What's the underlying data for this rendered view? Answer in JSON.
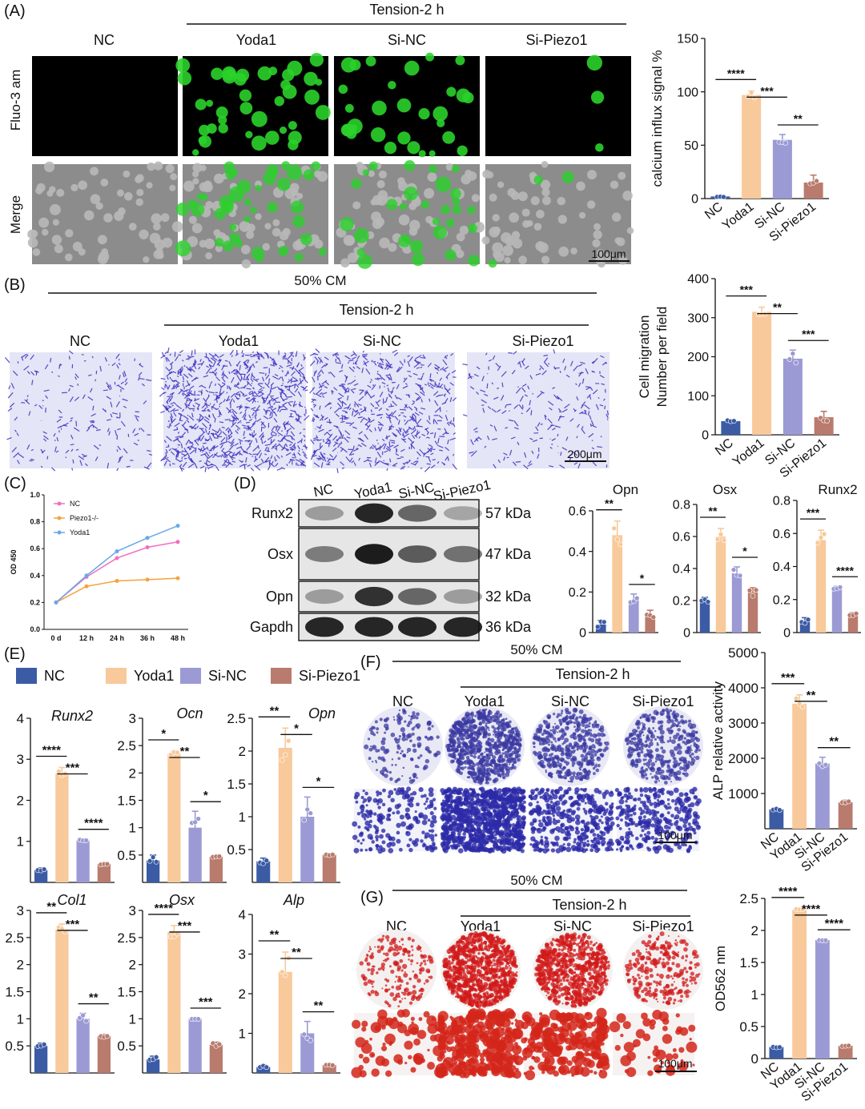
{
  "colors": {
    "NC": "#3b5ba5",
    "Yoda1": "#f8c99a",
    "SiNC": "#9b9ad4",
    "SiPiezo1": "#b97b6d",
    "line_NC": "#f06fbf",
    "line_Piezo": "#f4a340",
    "line_Yoda1": "#69a8e8",
    "fluo_bg": "#000000",
    "merge_bg": "#8c8c8c",
    "green": "#2bd12b",
    "crystal_bg": "#e4e5f6",
    "crystal_mark": "#3a2ec0",
    "alp_bg": "#e9e9f6",
    "ars_bg": "#f4f0f0",
    "ars_mark": "#d11a1a",
    "blot_bg": "#e6e6e6"
  },
  "panels": {
    "A": {
      "label": "(A)",
      "header": "Tension-2 h",
      "cols": [
        "NC",
        "Yoda1",
        "Si-NC",
        "Si-Piezo1"
      ],
      "rows": [
        "Fluo-3 am",
        "Merge"
      ],
      "scale": "100μm"
    },
    "B": {
      "label": "(B)",
      "top": "50% CM",
      "header": "Tension-2 h",
      "cols": [
        "NC",
        "Yoda1",
        "Si-NC",
        "Si-Piezo1"
      ],
      "scale": "200μm"
    },
    "C": {
      "label": "(C)"
    },
    "D": {
      "label": "(D)",
      "lanes": [
        "NC",
        "Yoda1",
        "Si-NC",
        "Si-Piezo1"
      ],
      "rows": [
        {
          "name": "Runx2",
          "kda": "57 kDa"
        },
        {
          "name": "Osx",
          "kda": "47 kDa"
        },
        {
          "name": "Opn",
          "kda": "32 kDa"
        },
        {
          "name": "Gapdh",
          "kda": "36 kDa"
        }
      ]
    },
    "E": {
      "label": "(E)",
      "legend": [
        "NC",
        "Yoda1",
        "Si-NC",
        "Si-Piezo1"
      ]
    },
    "F": {
      "label": "(F)",
      "top": "50% CM",
      "header": "Tension-2 h",
      "cols": [
        "NC",
        "Yoda1",
        "Si-NC",
        "Si-Piezo1"
      ],
      "scale": "100μm"
    },
    "G": {
      "label": "(G)",
      "top": "50% CM",
      "header": "Tension-2 h",
      "cols": [
        "NC",
        "Yoda1",
        "Si-NC",
        "Si-Piezo1"
      ],
      "scale": "100μm"
    }
  },
  "chart_data": [
    {
      "id": "A",
      "type": "bar",
      "categories": [
        "NC",
        "Yoda1",
        "Si-NC",
        "Si-Piezo1"
      ],
      "values": [
        2,
        97,
        55,
        15
      ],
      "errors": [
        1,
        4,
        5,
        7
      ],
      "ylabel": "calcium influx signal %",
      "ylim": [
        0,
        150
      ],
      "yticks": [
        0,
        50,
        100,
        150
      ],
      "sig": [
        {
          "a": 0,
          "b": 1,
          "text": "****"
        },
        {
          "a": 1,
          "b": 2,
          "text": "***"
        },
        {
          "a": 2,
          "b": 3,
          "text": "**"
        }
      ]
    },
    {
      "id": "B",
      "type": "bar",
      "categories": [
        "NC",
        "Yoda1",
        "Si-NC",
        "Si-Piezo1"
      ],
      "values": [
        35,
        315,
        195,
        45
      ],
      "errors": [
        3,
        12,
        22,
        15
      ],
      "ylabel": "Cell migration Number per field",
      "ylim": [
        0,
        400
      ],
      "yticks": [
        0,
        100,
        200,
        300,
        400
      ],
      "sig": [
        {
          "a": 0,
          "b": 1,
          "text": "***"
        },
        {
          "a": 1,
          "b": 2,
          "text": "**"
        },
        {
          "a": 2,
          "b": 3,
          "text": "***"
        }
      ]
    },
    {
      "id": "C",
      "type": "line",
      "x": [
        "0 d",
        "12 h",
        "24 h",
        "36 h",
        "48 h"
      ],
      "ylabel": "OD 450",
      "ylim": [
        0,
        1.0
      ],
      "yticks": [
        0.0,
        0.2,
        0.4,
        0.6,
        0.8,
        1.0
      ],
      "series": [
        {
          "name": "NC",
          "values": [
            0.2,
            0.39,
            0.53,
            0.61,
            0.65
          ]
        },
        {
          "name": "Piezo1-/-",
          "values": [
            0.2,
            0.32,
            0.36,
            0.37,
            0.38
          ]
        },
        {
          "name": "Yoda1",
          "values": [
            0.2,
            0.4,
            0.58,
            0.68,
            0.77
          ]
        }
      ]
    },
    {
      "id": "D-Opn",
      "type": "bar",
      "title": "Opn",
      "categories": [
        "NC",
        "Yoda1",
        "Si-NC",
        "Si-Piezo1"
      ],
      "values": [
        0.04,
        0.48,
        0.16,
        0.08
      ],
      "errors": [
        0.02,
        0.07,
        0.03,
        0.03
      ],
      "ylim": [
        0,
        0.6
      ],
      "yticks": [
        0.0,
        0.2,
        0.4,
        0.6
      ],
      "sig": [
        {
          "a": 0,
          "b": 1,
          "text": "**"
        },
        {
          "a": 2,
          "b": 3,
          "text": "*"
        }
      ]
    },
    {
      "id": "D-Osx",
      "type": "bar",
      "title": "Osx",
      "categories": [
        "NC",
        "Yoda1",
        "Si-NC",
        "Si-Piezo1"
      ],
      "values": [
        0.2,
        0.6,
        0.37,
        0.25
      ],
      "errors": [
        0.02,
        0.05,
        0.04,
        0.03
      ],
      "ylim": [
        0,
        0.8
      ],
      "yticks": [
        0.0,
        0.2,
        0.4,
        0.6,
        0.8
      ],
      "sig": [
        {
          "a": 0,
          "b": 1,
          "text": "**"
        },
        {
          "a": 2,
          "b": 3,
          "text": "*"
        }
      ]
    },
    {
      "id": "D-Runx2",
      "type": "bar",
      "title": "Runx2",
      "categories": [
        "NC",
        "Yoda1",
        "Si-NC",
        "Si-Piezo1"
      ],
      "values": [
        0.07,
        0.56,
        0.27,
        0.11
      ],
      "errors": [
        0.02,
        0.06,
        0.01,
        0.01
      ],
      "ylim": [
        0,
        0.8
      ],
      "yticks": [
        0.0,
        0.2,
        0.4,
        0.6,
        0.8
      ],
      "sig": [
        {
          "a": 0,
          "b": 1,
          "text": "***"
        },
        {
          "a": 2,
          "b": 3,
          "text": "****"
        }
      ]
    },
    {
      "id": "E-Runx2",
      "type": "bar",
      "title": "Runx2",
      "categories": [
        "NC",
        "Yoda1",
        "Si-NC",
        "Si-Piezo1"
      ],
      "values": [
        0.3,
        2.65,
        1.02,
        0.45
      ],
      "errors": [
        0.05,
        0.15,
        0.04,
        0.02
      ],
      "ylim": [
        0,
        4
      ],
      "yticks": [
        1,
        2,
        3,
        4
      ],
      "sig": [
        {
          "a": 0,
          "b": 1,
          "text": "****"
        },
        {
          "a": 1,
          "b": 2,
          "text": "***"
        },
        {
          "a": 2,
          "b": 3,
          "text": "****"
        }
      ]
    },
    {
      "id": "E-Ocn",
      "type": "bar",
      "title": "Ocn",
      "categories": [
        "NC",
        "Yoda1",
        "Si-NC",
        "Si-Piezo1"
      ],
      "values": [
        0.4,
        2.35,
        1.0,
        0.47
      ],
      "errors": [
        0.1,
        0.05,
        0.3,
        0.01
      ],
      "ylim": [
        0,
        3.0
      ],
      "yticks": [
        0.5,
        1.0,
        1.5,
        2.0,
        2.5,
        3.0
      ],
      "sig": [
        {
          "a": 0,
          "b": 1,
          "text": "*"
        },
        {
          "a": 1,
          "b": 2,
          "text": "**"
        },
        {
          "a": 2,
          "b": 3,
          "text": "*"
        }
      ]
    },
    {
      "id": "E-Opn",
      "type": "bar",
      "title": "Opn",
      "categories": [
        "NC",
        "Yoda1",
        "Si-NC",
        "Si-Piezo1"
      ],
      "values": [
        0.32,
        2.05,
        1.0,
        0.42
      ],
      "errors": [
        0.05,
        0.3,
        0.3,
        0.01
      ],
      "ylim": [
        0,
        2.5
      ],
      "yticks": [
        0.5,
        1.0,
        1.5,
        2.0,
        2.5
      ],
      "sig": [
        {
          "a": 0,
          "b": 1,
          "text": "**"
        },
        {
          "a": 1,
          "b": 2,
          "text": "*"
        },
        {
          "a": 2,
          "b": 3,
          "text": "*"
        }
      ]
    },
    {
      "id": "E-Col1",
      "type": "bar",
      "title": "Col1",
      "categories": [
        "NC",
        "Yoda1",
        "Si-NC",
        "Si-Piezo1"
      ],
      "values": [
        0.5,
        2.65,
        1.0,
        0.68
      ],
      "errors": [
        0.05,
        0.1,
        0.1,
        0.03
      ],
      "ylim": [
        0,
        3.0
      ],
      "yticks": [
        0.5,
        1.0,
        1.5,
        2.0,
        2.5,
        3.0
      ],
      "sig": [
        {
          "a": 0,
          "b": 1,
          "text": "**"
        },
        {
          "a": 1,
          "b": 2,
          "text": "***"
        },
        {
          "a": 2,
          "b": 3,
          "text": "**"
        }
      ]
    },
    {
      "id": "E-Osx",
      "type": "bar",
      "title": "Osx",
      "categories": [
        "NC",
        "Yoda1",
        "Si-NC",
        "Si-Piezo1"
      ],
      "values": [
        0.25,
        2.6,
        1.0,
        0.52
      ],
      "errors": [
        0.06,
        0.12,
        0.02,
        0.05
      ],
      "ylim": [
        0,
        3.0
      ],
      "yticks": [
        0.5,
        1.0,
        1.5,
        2.0,
        2.5,
        3.0
      ],
      "sig": [
        {
          "a": 0,
          "b": 1,
          "text": "****"
        },
        {
          "a": 1,
          "b": 2,
          "text": "***"
        },
        {
          "a": 2,
          "b": 3,
          "text": "***"
        }
      ]
    },
    {
      "id": "E-Alp",
      "type": "bar",
      "title": "Alp",
      "categories": [
        "NC",
        "Yoda1",
        "Si-NC",
        "Si-Piezo1"
      ],
      "values": [
        0.15,
        2.55,
        1.0,
        0.2
      ],
      "errors": [
        0.05,
        0.5,
        0.3,
        0.01
      ],
      "ylim": [
        0,
        4
      ],
      "yticks": [
        1,
        2,
        3,
        4
      ],
      "sig": [
        {
          "a": 0,
          "b": 1,
          "text": "**"
        },
        {
          "a": 1,
          "b": 2,
          "text": "**"
        },
        {
          "a": 2,
          "b": 3,
          "text": "**"
        }
      ]
    },
    {
      "id": "F",
      "type": "bar",
      "categories": [
        "NC",
        "Yoda1",
        "Si-NC",
        "Si-Piezo1"
      ],
      "values": [
        550,
        3550,
        1850,
        750
      ],
      "errors": [
        30,
        250,
        180,
        60
      ],
      "ylabel": "ALP relative activity",
      "ylim": [
        0,
        5000
      ],
      "yticks": [
        1000,
        2000,
        3000,
        4000,
        5000
      ],
      "sig": [
        {
          "a": 0,
          "b": 1,
          "text": "***"
        },
        {
          "a": 1,
          "b": 2,
          "text": "**"
        },
        {
          "a": 2,
          "b": 3,
          "text": "**"
        }
      ]
    },
    {
      "id": "G",
      "type": "bar",
      "categories": [
        "NC",
        "Yoda1",
        "Si-NC",
        "Si-Piezo1"
      ],
      "values": [
        0.18,
        2.32,
        1.85,
        0.2
      ],
      "errors": [
        0.01,
        0.02,
        0.01,
        0.01
      ],
      "ylabel": "OD562 nm",
      "ylim": [
        0,
        2.5
      ],
      "yticks": [
        0.0,
        0.5,
        1.0,
        1.5,
        2.0,
        2.5
      ],
      "sig": [
        {
          "a": 0,
          "b": 1,
          "text": "****"
        },
        {
          "a": 1,
          "b": 2,
          "text": "****"
        },
        {
          "a": 2,
          "b": 3,
          "text": "****"
        }
      ]
    }
  ]
}
